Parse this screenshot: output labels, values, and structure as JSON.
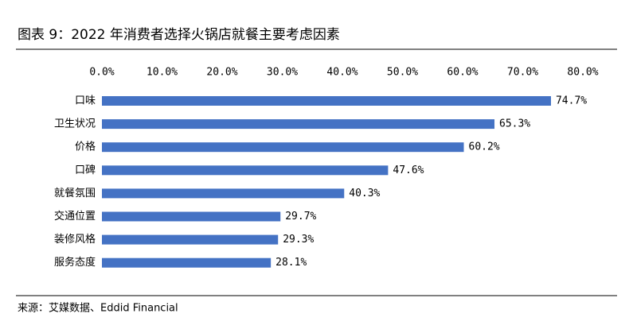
{
  "chart_data": {
    "type": "bar",
    "orientation": "horizontal",
    "title": "图表 9：2022 年消费者选择火锅店就餐主要考虑因素",
    "source": "来源：艾媒数据、Eddid Financial",
    "categories": [
      "口味",
      "卫生状况",
      "价格",
      "口碑",
      "就餐氛围",
      "交通位置",
      "装修风格",
      "服务态度"
    ],
    "values": [
      74.7,
      65.3,
      60.2,
      47.6,
      40.3,
      29.7,
      29.3,
      28.1
    ],
    "value_labels": [
      "74.7%",
      "65.3%",
      "60.2%",
      "47.6%",
      "40.3%",
      "29.7%",
      "29.3%",
      "28.1%"
    ],
    "color": "#4472c4",
    "xlim": [
      0,
      80
    ],
    "xticks": [
      {
        "value": 0,
        "label": "0.0%"
      },
      {
        "value": 10,
        "label": "10.0%"
      },
      {
        "value": 20,
        "label": "20.0%"
      },
      {
        "value": 30,
        "label": "30.0%"
      },
      {
        "value": 40,
        "label": "40.0%"
      },
      {
        "value": 50,
        "label": "50.0%"
      },
      {
        "value": 60,
        "label": "60.0%"
      },
      {
        "value": 70,
        "label": "70.0%"
      },
      {
        "value": 80,
        "label": "80.0%"
      }
    ],
    "grid": false
  }
}
